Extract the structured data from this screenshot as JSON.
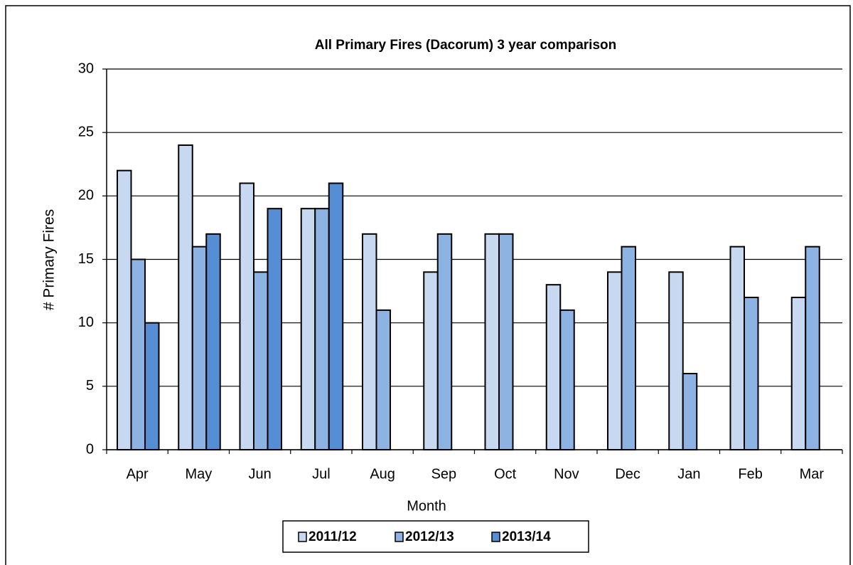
{
  "chart_data": {
    "type": "bar",
    "title": "All Primary Fires (Dacorum) 3 year comparison",
    "x_label": "Month",
    "y_label": "# Primary Fires",
    "categories": [
      "Apr",
      "May",
      "Jun",
      "Jul",
      "Aug",
      "Sep",
      "Oct",
      "Nov",
      "Dec",
      "Jan",
      "Feb",
      "Mar"
    ],
    "series": [
      {
        "name": "2011/12",
        "color": "#c6d9f1",
        "values": [
          22,
          24,
          21,
          19,
          17,
          14,
          17,
          13,
          14,
          14,
          16,
          12
        ]
      },
      {
        "name": "2012/13",
        "color": "#8db3e2",
        "values": [
          15,
          16,
          14,
          19,
          11,
          17,
          17,
          11,
          16,
          6,
          12,
          16
        ]
      },
      {
        "name": "2013/14",
        "color": "#558ed5",
        "values": [
          10,
          17,
          19,
          21,
          null,
          null,
          null,
          null,
          null,
          null,
          null,
          null
        ]
      }
    ],
    "ylim": [
      0,
      30
    ],
    "yticks": [
      0,
      5,
      10,
      15,
      20,
      25,
      30
    ],
    "grid": true,
    "legend": "bottom"
  }
}
